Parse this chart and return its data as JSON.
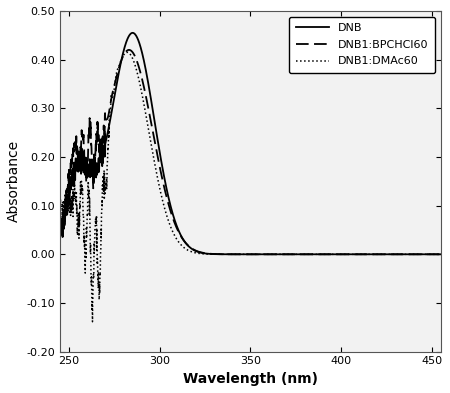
{
  "title": "",
  "xlabel": "Wavelength (nm)",
  "ylabel": "Absorbance",
  "xlim": [
    245,
    455
  ],
  "ylim": [
    -0.2,
    0.5
  ],
  "yticks": [
    -0.2,
    -0.1,
    0.0,
    0.1,
    0.2,
    0.3,
    0.4,
    0.5
  ],
  "xticks": [
    250,
    300,
    350,
    400,
    450
  ],
  "legend_labels": [
    "DNB",
    "DNB1:BPCHCl60",
    "DNB1:DMAc60"
  ],
  "line_color": "#000000",
  "background_color": "#ffffff",
  "plot_bg_color": "#f2f2f2"
}
